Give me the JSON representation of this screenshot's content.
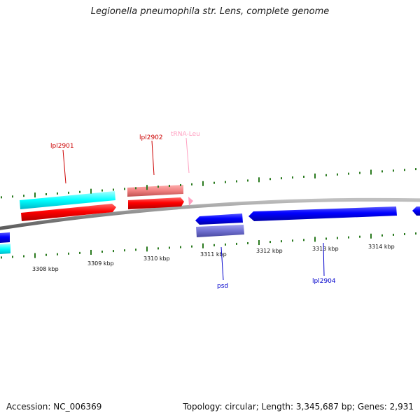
{
  "title": "Legionella pneumophila str. Lens, complete genome",
  "footer": {
    "accession": "Accession: NC_006369",
    "topology": "Topology: circular; Length: 3,345,687 bp; Genes: 2,931"
  },
  "colors": {
    "backbone": "#8a8a8a",
    "tick": "#2a7a1f",
    "cds_forward": "#ff0000",
    "cds_forward_light": "#f08080",
    "cds_reverse": "#0000ff",
    "cds_reverse_light": "#7070d0",
    "blast_hit": "#00ffff",
    "trna": "#ff9fc0"
  },
  "scale_labels": [
    "3308 kbp",
    "3309 kbp",
    "3310 kbp",
    "3311 kbp",
    "3312 kbp",
    "3313 kbp",
    "3314 kbp"
  ],
  "gene_labels": [
    {
      "id": "lpl2901",
      "text": "lpl2901",
      "color": "#cc0000"
    },
    {
      "id": "lpl2902",
      "text": "lpl2902",
      "color": "#cc0000"
    },
    {
      "id": "trna-leu",
      "text": "tRNA-Leu",
      "color": "#ff9fc0"
    },
    {
      "id": "psd",
      "text": "psd",
      "color": "#0000cc"
    },
    {
      "id": "lpl2904",
      "text": "lpl2904",
      "color": "#0000cc"
    }
  ]
}
